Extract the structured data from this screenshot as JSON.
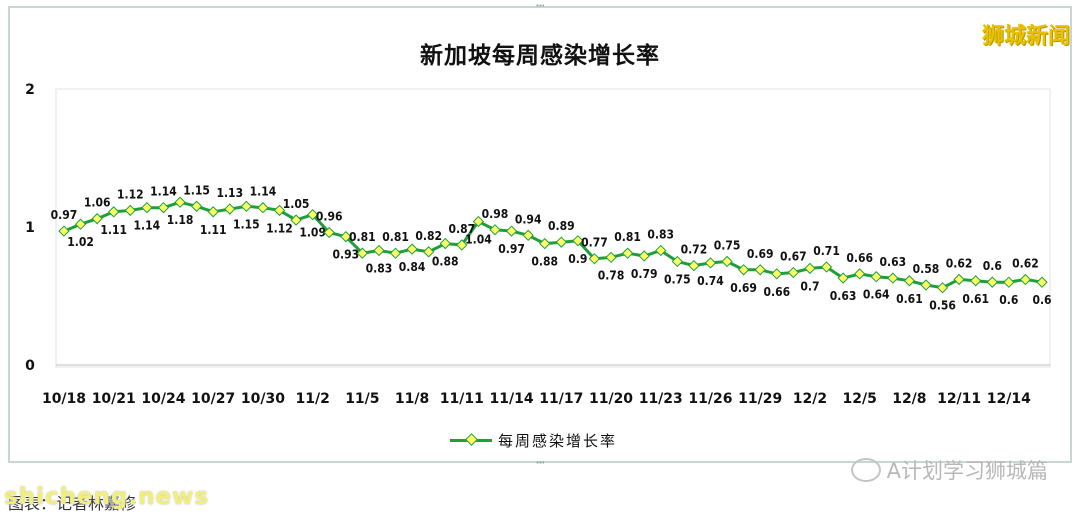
{
  "brand": "狮城新闻",
  "source_watermark": "A计划学习狮城篇",
  "site_watermark": "shicheng.news",
  "caption": "图表：记者林嘉修",
  "chart_data": {
    "type": "line",
    "title": "新加坡每周感染增长率",
    "ylim": [
      0,
      2
    ],
    "yticks": [
      "0",
      "1",
      "2"
    ],
    "xtick_labels": [
      "10/18",
      "10/21",
      "10/24",
      "10/27",
      "10/30",
      "11/2",
      "11/5",
      "11/8",
      "11/11",
      "11/14",
      "11/17",
      "11/20",
      "11/23",
      "11/26",
      "11/29",
      "12/2",
      "12/5",
      "12/8",
      "12/11",
      "12/14"
    ],
    "x": [
      "10/18",
      "10/19",
      "10/20",
      "10/21",
      "10/22",
      "10/23",
      "10/24",
      "10/25",
      "10/26",
      "10/27",
      "10/28",
      "10/29",
      "10/30",
      "10/31",
      "11/1",
      "11/2",
      "11/3",
      "11/4",
      "11/5",
      "11/6",
      "11/7",
      "11/8",
      "11/9",
      "11/10",
      "11/11",
      "11/12",
      "11/13",
      "11/14",
      "11/15",
      "11/16",
      "11/17",
      "11/18",
      "11/19",
      "11/20",
      "11/21",
      "11/22",
      "11/23",
      "11/24",
      "11/25",
      "11/26",
      "11/27",
      "11/28",
      "11/29",
      "11/30",
      "12/1",
      "12/2",
      "12/3",
      "12/4",
      "12/5",
      "12/6",
      "12/7",
      "12/8",
      "12/9",
      "12/10",
      "12/11",
      "12/12",
      "12/13",
      "12/14",
      "12/15",
      "12/16"
    ],
    "series": [
      {
        "name": "每周感染增长率",
        "color": "#1f9e3e",
        "marker_color": "#ffff66",
        "values": [
          0.97,
          1.02,
          1.06,
          1.11,
          1.12,
          1.14,
          1.14,
          1.18,
          1.15,
          1.11,
          1.13,
          1.15,
          1.14,
          1.12,
          1.05,
          1.09,
          0.96,
          0.93,
          0.81,
          0.83,
          0.81,
          0.84,
          0.82,
          0.88,
          0.87,
          1.04,
          0.98,
          0.97,
          0.94,
          0.88,
          0.89,
          0.9,
          0.77,
          0.78,
          0.81,
          0.79,
          0.83,
          0.75,
          0.72,
          0.74,
          0.75,
          0.69,
          0.69,
          0.66,
          0.67,
          0.7,
          0.71,
          0.63,
          0.66,
          0.64,
          0.63,
          0.61,
          0.58,
          0.56,
          0.62,
          0.61,
          0.6,
          0.6,
          0.62,
          0.6
        ]
      }
    ],
    "legend_position": "bottom",
    "grid": false
  }
}
